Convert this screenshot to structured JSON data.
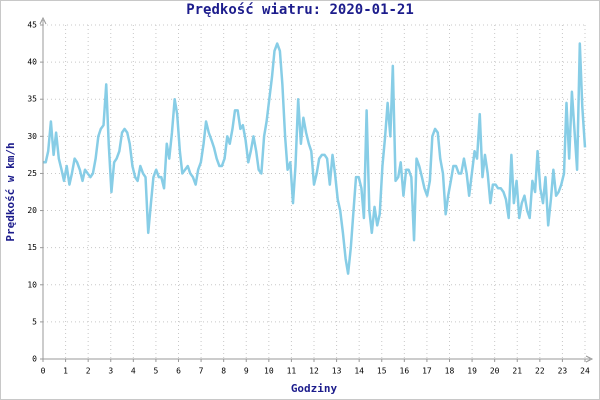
{
  "chart_data": {
    "type": "line",
    "title": "Prędkość wiatru: 2020-01-21",
    "x_label": "Godziny",
    "y_label": "Prędkość w km/h",
    "xlim": [
      0,
      24
    ],
    "xticks": [
      0,
      1,
      2,
      3,
      4,
      5,
      6,
      7,
      8,
      9,
      10,
      11,
      12,
      13,
      14,
      15,
      16,
      17,
      18,
      19,
      20,
      21,
      22,
      23,
      24
    ],
    "ylim": [
      0,
      45
    ],
    "yticks": [
      0,
      5,
      10,
      15,
      20,
      25,
      30,
      35,
      40,
      45
    ],
    "grid": true,
    "x": [
      0,
      0.12,
      0.23,
      0.35,
      0.47,
      0.58,
      0.7,
      0.82,
      0.93,
      1.05,
      1.17,
      1.28,
      1.4,
      1.51,
      1.63,
      1.75,
      1.86,
      1.98,
      2.1,
      2.21,
      2.33,
      2.45,
      2.56,
      2.68,
      2.8,
      2.91,
      3.03,
      3.15,
      3.26,
      3.38,
      3.5,
      3.61,
      3.73,
      3.84,
      3.96,
      4.08,
      4.19,
      4.31,
      4.43,
      4.54,
      4.66,
      4.78,
      4.89,
      5.01,
      5.13,
      5.24,
      5.36,
      5.48,
      5.59,
      5.71,
      5.83,
      5.94,
      6.06,
      6.17,
      6.29,
      6.41,
      6.52,
      6.64,
      6.76,
      6.87,
      6.99,
      7.11,
      7.22,
      7.34,
      7.46,
      7.57,
      7.69,
      7.81,
      7.92,
      8.04,
      8.16,
      8.27,
      8.39,
      8.5,
      8.62,
      8.74,
      8.85,
      8.97,
      9.09,
      9.2,
      9.32,
      9.44,
      9.55,
      9.67,
      9.79,
      9.9,
      10.02,
      10.14,
      10.25,
      10.37,
      10.49,
      10.6,
      10.72,
      10.83,
      10.95,
      11.07,
      11.18,
      11.3,
      11.42,
      11.53,
      11.65,
      11.77,
      11.88,
      12.0,
      12.12,
      12.23,
      12.35,
      12.47,
      12.58,
      12.7,
      12.82,
      12.93,
      13.05,
      13.16,
      13.28,
      13.4,
      13.51,
      13.63,
      13.75,
      13.86,
      13.98,
      14.1,
      14.21,
      14.33,
      14.45,
      14.56,
      14.68,
      14.8,
      14.91,
      15.03,
      15.15,
      15.26,
      15.38,
      15.49,
      15.61,
      15.73,
      15.84,
      15.96,
      16.08,
      16.19,
      16.31,
      16.43,
      16.54,
      16.66,
      16.78,
      16.89,
      17.01,
      17.13,
      17.24,
      17.36,
      17.48,
      17.59,
      17.71,
      17.83,
      17.94,
      18.06,
      18.17,
      18.29,
      18.41,
      18.52,
      18.64,
      18.76,
      18.87,
      18.99,
      19.11,
      19.22,
      19.34,
      19.46,
      19.57,
      19.69,
      19.81,
      19.92,
      20.04,
      20.15,
      20.27,
      20.39,
      20.5,
      20.62,
      20.74,
      20.85,
      20.97,
      21.09,
      21.2,
      21.32,
      21.44,
      21.55,
      21.67,
      21.79,
      21.9,
      22.02,
      22.14,
      22.25,
      22.37,
      22.49,
      22.6,
      22.72,
      22.83,
      22.95,
      23.07,
      23.18,
      23.3,
      23.42,
      23.53,
      23.65,
      23.77,
      23.88,
      24.0
    ],
    "series": [
      {
        "name": "Prędkość wiatru",
        "color": "#87cde6",
        "values": [
          26.5,
          26.5,
          28,
          32,
          27.5,
          30.5,
          27,
          25.5,
          24,
          26,
          23.5,
          25,
          27,
          26.5,
          25.5,
          24,
          25.5,
          25,
          24.5,
          25,
          27,
          30,
          31,
          31.5,
          37,
          29,
          22.5,
          26.5,
          27,
          28,
          30.5,
          31,
          30.5,
          29,
          26,
          24.5,
          24,
          26,
          25,
          24.5,
          17,
          21,
          24.5,
          25.5,
          24.5,
          24.5,
          23,
          29,
          27,
          30.5,
          35,
          33,
          28,
          25,
          25.5,
          26,
          25,
          24.5,
          23.5,
          25.5,
          26.5,
          29,
          32,
          30.5,
          29.5,
          28.5,
          27,
          26,
          26,
          27,
          30,
          29,
          31,
          33.5,
          33.5,
          31,
          31.5,
          29.5,
          26.5,
          28,
          30,
          28,
          25.5,
          25,
          30,
          32,
          35,
          38,
          41.5,
          42.5,
          41.5,
          37,
          30,
          25.5,
          26.5,
          21,
          26,
          35,
          29,
          32.5,
          30.5,
          29,
          28,
          23.5,
          25,
          27,
          27.5,
          27.5,
          27,
          23.5,
          27.5,
          25,
          21.5,
          20,
          17,
          13.5,
          11.5,
          15,
          20,
          24.5,
          24.5,
          23,
          19,
          33.5,
          20,
          17,
          20.5,
          18,
          19.5,
          26,
          30,
          34.5,
          30,
          39.5,
          24,
          24.5,
          26.5,
          22,
          25.5,
          25.5,
          24.5,
          16,
          27,
          26,
          24.5,
          23,
          22,
          24,
          30,
          31,
          30.5,
          27,
          25,
          19.5,
          22,
          24,
          26,
          26,
          25,
          25,
          27,
          25,
          22,
          25,
          28,
          27,
          33,
          24.5,
          27.5,
          25,
          21,
          23.5,
          23.5,
          23,
          23,
          22.5,
          21.5,
          19,
          27.5,
          21,
          24,
          19,
          21,
          22,
          20,
          19,
          24,
          22.5,
          28,
          23,
          21,
          24.5,
          18,
          21.5,
          25.5,
          22,
          22.5,
          23.5,
          25,
          34.5,
          27,
          36,
          31,
          25.5,
          42.5,
          34,
          28.5
        ]
      }
    ]
  }
}
